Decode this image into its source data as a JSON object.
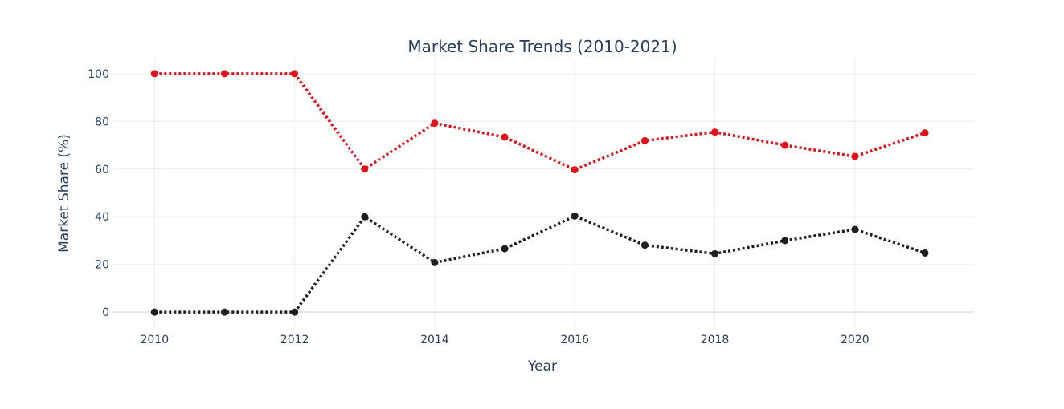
{
  "chart_data": {
    "type": "line",
    "title": "Market Share Trends (2010-2021)",
    "xlabel": "Year",
    "ylabel": "Market Share (%)",
    "x": [
      2010,
      2011,
      2012,
      2013,
      2014,
      2015,
      2016,
      2017,
      2018,
      2019,
      2020,
      2021
    ],
    "xticks": [
      "2010",
      "2012",
      "2014",
      "2016",
      "2018",
      "2020"
    ],
    "yticks": [
      "0",
      "20",
      "40",
      "60",
      "80",
      "100"
    ],
    "xlim": [
      2009.4,
      2021.7
    ],
    "ylim": [
      -7,
      107
    ],
    "grid": true,
    "series": [
      {
        "color": "#e3101c",
        "line_style": "dotted",
        "values": [
          100,
          100,
          100,
          60,
          79.2,
          73.4,
          59.7,
          71.9,
          75.5,
          70,
          65.3,
          75.2
        ]
      },
      {
        "color": "#1f1f1f",
        "line_style": "dotted",
        "values": [
          0,
          0,
          0,
          40,
          20.8,
          26.6,
          40.3,
          28.1,
          24.5,
          30,
          34.7,
          24.8
        ]
      }
    ]
  }
}
